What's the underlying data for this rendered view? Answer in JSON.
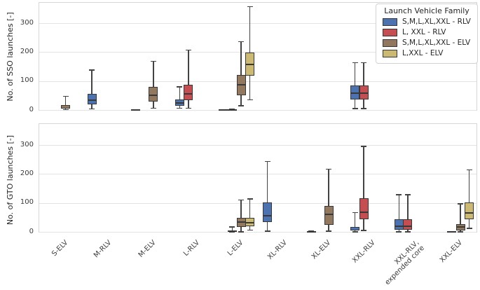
{
  "chart_data": {
    "type": "boxplot",
    "grid": true,
    "legend_position": "upper right",
    "x_tick_labels": [
      "S-ELV",
      "M-RLV",
      "M-ELV",
      "L-RLV",
      "L-ELV",
      "XL-RLV",
      "XL-ELV",
      "XXL-RLV",
      "XXL-RLV,\nexpended core",
      "XXL-ELV"
    ],
    "families": [
      {
        "id": "rlv_all",
        "label": "S,M,L,XL,XXL - RLV",
        "color": "#4C72B0"
      },
      {
        "id": "rlv_lxxl",
        "label": "L, XXL - RLV",
        "color": "#C44E52"
      },
      {
        "id": "elv_all",
        "label": "S,M,L,XL,XXL - ELV",
        "color": "#937860"
      },
      {
        "id": "elv_lxxl",
        "label": "L,XXL - ELV",
        "color": "#CCB974"
      }
    ],
    "legend": {
      "title": "Launch Vehicle Family"
    },
    "subplots": [
      {
        "ylabel": "No. of SSO launches [-]",
        "yticks": [
          0,
          100,
          200,
          300
        ],
        "ylim": [
          -8,
          372
        ],
        "boxes": [
          {
            "cat": 0,
            "family": "elv_all",
            "whislo": 1,
            "q1": 5,
            "med": 10,
            "q3": 16,
            "whishi": 48
          },
          {
            "cat": 1,
            "family": "rlv_all",
            "whislo": 3,
            "q1": 20,
            "med": 35,
            "q3": 56,
            "whishi": 139
          },
          {
            "cat": 2,
            "family": "rlv_all",
            "whislo": 1,
            "q1": 1,
            "med": 1,
            "q3": 2,
            "whishi": 2
          },
          {
            "cat": 2,
            "family": "elv_all",
            "whislo": 5,
            "q1": 29,
            "med": 51,
            "q3": 80,
            "whishi": 169
          },
          {
            "cat": 3,
            "family": "rlv_all",
            "whislo": 6,
            "q1": 15,
            "med": 25,
            "q3": 36,
            "whishi": 81
          },
          {
            "cat": 3,
            "family": "rlv_lxxl",
            "whislo": 5,
            "q1": 35,
            "med": 56,
            "q3": 87,
            "whishi": 208
          },
          {
            "cat": 4,
            "family": "rlv_all",
            "whislo": 1,
            "q1": 1,
            "med": 1,
            "q3": 2,
            "whishi": 2
          },
          {
            "cat": 4,
            "family": "rlv_lxxl",
            "whislo": 1,
            "q1": 1,
            "med": 2,
            "q3": 3,
            "whishi": 3
          },
          {
            "cat": 4,
            "family": "elv_all",
            "whislo": 14,
            "q1": 51,
            "med": 87,
            "q3": 121,
            "whishi": 236
          },
          {
            "cat": 4,
            "family": "elv_lxxl",
            "whislo": 35,
            "q1": 118,
            "med": 158,
            "q3": 199,
            "whishi": 358
          },
          {
            "cat": 7,
            "family": "rlv_all",
            "whislo": 4,
            "q1": 36,
            "med": 59,
            "q3": 85,
            "whishi": 164
          },
          {
            "cat": 7,
            "family": "rlv_lxxl",
            "whislo": 4,
            "q1": 36,
            "med": 58,
            "q3": 85,
            "whishi": 164
          }
        ]
      },
      {
        "ylabel": "No. of GTO launches [-]",
        "yticks": [
          0,
          100,
          200,
          300
        ],
        "ylim": [
          -8,
          372
        ],
        "boxes": [
          {
            "cat": 4,
            "family": "rlv_lxxl",
            "whislo": 0,
            "q1": 0,
            "med": 2,
            "q3": 4,
            "whishi": 18
          },
          {
            "cat": 4,
            "family": "elv_all",
            "whislo": 0,
            "q1": 16,
            "med": 35,
            "q3": 48,
            "whishi": 111
          },
          {
            "cat": 4,
            "family": "elv_lxxl",
            "whislo": 6,
            "q1": 20,
            "med": 32,
            "q3": 48,
            "whishi": 114
          },
          {
            "cat": 5,
            "family": "rlv_all",
            "whislo": 2,
            "q1": 35,
            "med": 55,
            "q3": 101,
            "whishi": 244
          },
          {
            "cat": 6,
            "family": "rlv_all",
            "whislo": 1,
            "q1": 1,
            "med": 2,
            "q3": 3,
            "whishi": 3
          },
          {
            "cat": 6,
            "family": "elv_all",
            "whislo": 2,
            "q1": 24,
            "med": 60,
            "q3": 89,
            "whishi": 217
          },
          {
            "cat": 7,
            "family": "rlv_all",
            "whislo": 0,
            "q1": 4,
            "med": 12,
            "q3": 16,
            "whishi": 67
          },
          {
            "cat": 7,
            "family": "rlv_lxxl",
            "whislo": 4,
            "q1": 43,
            "med": 67,
            "q3": 117,
            "whishi": 296
          },
          {
            "cat": 8,
            "family": "rlv_all",
            "whislo": 0,
            "q1": 8,
            "med": 20,
            "q3": 43,
            "whishi": 129
          },
          {
            "cat": 8,
            "family": "rlv_lxxl",
            "whislo": 0,
            "q1": 8,
            "med": 20,
            "q3": 43,
            "whishi": 129
          },
          {
            "cat": 9,
            "family": "rlv_lxxl",
            "whislo": 0,
            "q1": 0,
            "med": 1,
            "q3": 2,
            "whishi": 2
          },
          {
            "cat": 9,
            "family": "elv_all",
            "whislo": 0,
            "q1": 6,
            "med": 16,
            "q3": 27,
            "whishi": 97
          },
          {
            "cat": 9,
            "family": "elv_lxxl",
            "whislo": 12,
            "q1": 43,
            "med": 65,
            "q3": 101,
            "whishi": 215
          }
        ]
      }
    ],
    "colors": {
      "box_edge": "#383838",
      "whisker": "#434343",
      "grid": "#e3e3e3",
      "spine": "#d6d6d6",
      "text": "#262626"
    }
  }
}
